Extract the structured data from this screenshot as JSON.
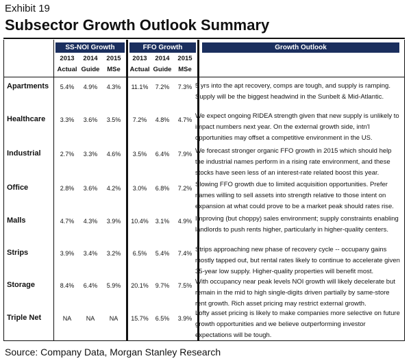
{
  "exhibit": "Exhibit 19",
  "title": "Subsector Growth Outlook Summary",
  "headers": {
    "ss_noi": "SS-NOI Growth",
    "ffo": "FFO Growth",
    "outlook": "Growth Outlook",
    "years": [
      "2013",
      "2014",
      "2015",
      "2013",
      "2014",
      "2015"
    ],
    "subs": [
      "Actual",
      "Guide",
      "MSe",
      "Actual",
      "Guide",
      "MSe"
    ]
  },
  "rows": [
    {
      "label": "Apartments",
      "ss": [
        "5.4%",
        "4.9%",
        "4.3%"
      ],
      "ffo": [
        "11.1%",
        "7.2%",
        "7.3%"
      ],
      "outlook": "5 yrs into the apt recovery, comps are tough, and supply is ramping. Supply will be the biggest headwind in the Sunbelt & Mid-Atlantic."
    },
    {
      "label": "Healthcare",
      "ss": [
        "3.3%",
        "3.6%",
        "3.5%"
      ],
      "ffo": [
        "7.2%",
        "4.8%",
        "4.7%"
      ],
      "outlook": "We expect ongoing RIDEA strength given that new supply is unlikely to impact numbers next year. On the external growth side, intn'l opportunities may offset a competitive environment in the US."
    },
    {
      "label": "Industrial",
      "ss": [
        "2.7%",
        "3.3%",
        "4.6%"
      ],
      "ffo": [
        "3.5%",
        "6.4%",
        "7.9%"
      ],
      "outlook": "We forecast stronger organic FFO growth in 2015 which should help the industrial names perform in a rising rate environment, and these stocks have seen less of an interest-rate related boost this year."
    },
    {
      "label": "Office",
      "ss": [
        "2.8%",
        "3.6%",
        "4.2%"
      ],
      "ffo": [
        "3.0%",
        "6.8%",
        "7.2%"
      ],
      "outlook": "Slowing FFO growth due to limited acquisition opportunities. Prefer names willing to sell assets into strength relative to those intent on expansion at what could prove to be a market peak should rates rise."
    },
    {
      "label": "Malls",
      "ss": [
        "4.7%",
        "4.3%",
        "3.9%"
      ],
      "ffo": [
        "10.4%",
        "3.1%",
        "4.9%"
      ],
      "outlook": "Improving (but choppy) sales environment; supply constraints enabling landlords to push rents higher, particularly in higher-quality centers."
    },
    {
      "label": "Strips",
      "ss": [
        "3.9%",
        "3.4%",
        "3.2%"
      ],
      "ffo": [
        "6.5%",
        "5.4%",
        "7.4%"
      ],
      "outlook": "Strips approaching new phase of recovery cycle -- occupany gains mostly tapped out, but rental rates likely to continue to accelerate given 35-year low supply. Higher-quality properties will benefit most."
    },
    {
      "label": "Storage",
      "ss": [
        "8.4%",
        "6.4%",
        "5.9%"
      ],
      "ffo": [
        "20.1%",
        "9.7%",
        "7.5%"
      ],
      "outlook": "With occupancy near peak levels NOI growth will likely decelerate but remain in the mid to high single-digits driven partially by same-store rent growth. Rich asset pricing may restrict external growth."
    },
    {
      "label": "Triple Net",
      "ss": [
        "NA",
        "NA",
        "NA"
      ],
      "ffo": [
        "15.7%",
        "6.5%",
        "3.9%"
      ],
      "outlook": "Lofty asset pricing is likely to make companies more selective on future growth opportunities and we believe outperforming investor expectations will be tough."
    }
  ],
  "source": "Source: Company Data, Morgan Stanley Research"
}
